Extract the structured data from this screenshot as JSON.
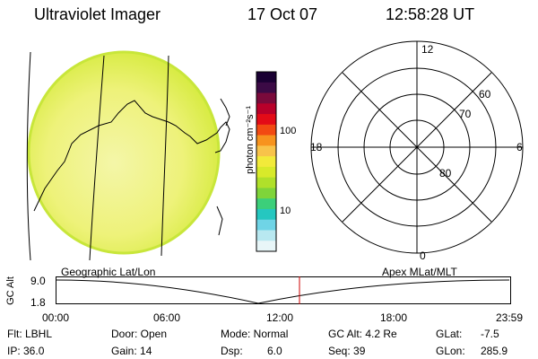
{
  "header": {
    "instrument": "Ultraviolet Imager",
    "date": "17 Oct 07",
    "time": "12:58:28 UT"
  },
  "colorbar": {
    "unit_label": "photon cm⁻²s⁻¹",
    "ticks": [
      "100",
      "10"
    ],
    "colors": [
      "#1a0033",
      "#3b0a45",
      "#7a0a3b",
      "#b8002a",
      "#e30b17",
      "#f24a12",
      "#f7931e",
      "#f8c34a",
      "#f2ea3a",
      "#d8ea2a",
      "#b0e02a",
      "#7fd43a",
      "#3ccf7a",
      "#25c7c0",
      "#6fd4e6",
      "#b8e8f0",
      "#e8f6f8"
    ]
  },
  "polar": {
    "ring_labels": [
      "80",
      "70",
      "60"
    ],
    "mlt_labels": {
      "top": "12",
      "left": "18",
      "right": "6",
      "bottom": "0"
    }
  },
  "gc_plot": {
    "axis_label": "GC Alt",
    "y_ticks": [
      "9.0",
      "1.8"
    ],
    "left_caption": "Geographic Lat/Lon",
    "right_caption": "Apex MLat/MLT",
    "x_ticks": [
      "00:00",
      "06:00",
      "12:00",
      "18:00",
      "23:59"
    ]
  },
  "info": {
    "flt": "Flt: LBHL",
    "ip": "IP: 36.0",
    "door": "Door: Open",
    "gain": "Gain: 14",
    "mode": "Mode: Normal",
    "dsp_label": "Dsp:",
    "dsp_value": "6.0",
    "gcalt": "GC Alt: 4.2 Re",
    "seq": "Seq: 39",
    "glat_label": "GLat:",
    "glat_value": "-7.5",
    "glon_label": "GLon:",
    "glon_value": "285.9"
  }
}
